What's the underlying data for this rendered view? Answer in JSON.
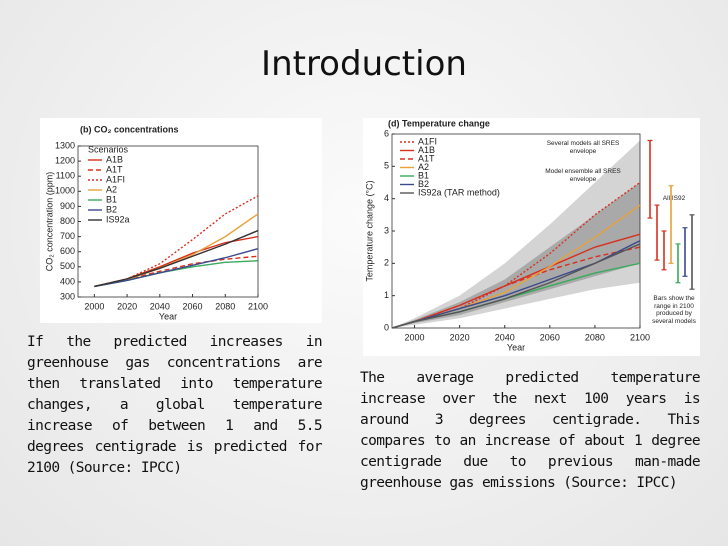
{
  "title": "Introduction",
  "chart_data": [
    {
      "type": "line",
      "title": "(b) CO₂ concentrations",
      "xlabel": "Year",
      "ylabel": "CO₂ concentration (ppm)",
      "legend_title": "Scenarios",
      "x": [
        2000,
        2020,
        2040,
        2060,
        2080,
        2100
      ],
      "xlim": [
        1990,
        2100
      ],
      "xticks": [
        2000,
        2020,
        2040,
        2060,
        2080,
        2100
      ],
      "ylim": [
        300,
        1300
      ],
      "yticks": [
        300,
        400,
        500,
        600,
        700,
        800,
        900,
        1000,
        1100,
        1200,
        1300
      ],
      "series": [
        {
          "name": "A1B",
          "color": "#d7301f",
          "style": "solid",
          "values": [
            370,
            420,
            500,
            590,
            660,
            700
          ]
        },
        {
          "name": "A1T",
          "color": "#d7301f",
          "style": "dashed",
          "values": [
            370,
            415,
            470,
            520,
            550,
            570
          ]
        },
        {
          "name": "A1FI",
          "color": "#d7301f",
          "style": "dotted",
          "values": [
            370,
            420,
            520,
            680,
            850,
            970
          ]
        },
        {
          "name": "A2",
          "color": "#e8a23a",
          "style": "solid",
          "values": [
            370,
            415,
            490,
            580,
            700,
            850
          ]
        },
        {
          "name": "B1",
          "color": "#3aaa5c",
          "style": "solid",
          "values": [
            370,
            410,
            460,
            500,
            530,
            540
          ]
        },
        {
          "name": "B2",
          "color": "#3b4a8c",
          "style": "solid",
          "values": [
            370,
            410,
            460,
            510,
            560,
            620
          ]
        },
        {
          "name": "IS92a",
          "color": "#333333",
          "style": "solid",
          "values": [
            370,
            420,
            490,
            570,
            650,
            740
          ]
        }
      ]
    },
    {
      "type": "line",
      "title": "(d) Temperature change",
      "xlabel": "Year",
      "ylabel": "Temperature change (°C)",
      "x": [
        1990,
        2000,
        2020,
        2040,
        2060,
        2080,
        2100
      ],
      "xlim": [
        1990,
        2100
      ],
      "xticks": [
        2000,
        2020,
        2040,
        2060,
        2080,
        2100
      ],
      "ylim": [
        0,
        6
      ],
      "yticks": [
        0,
        1,
        2,
        3,
        4,
        5,
        6
      ],
      "bands": [
        {
          "color": "#d4d4d4",
          "upper": [
            0,
            0.3,
            1.0,
            2.0,
            3.2,
            4.5,
            5.8
          ],
          "lower": [
            0,
            0.1,
            0.3,
            0.6,
            0.9,
            1.2,
            1.4
          ]
        },
        {
          "color": "#a9a9a9",
          "upper": [
            0,
            0.25,
            0.8,
            1.5,
            2.5,
            3.5,
            4.5
          ],
          "lower": [
            0,
            0.15,
            0.4,
            0.8,
            1.2,
            1.6,
            2.0
          ]
        }
      ],
      "series": [
        {
          "name": "A1FI",
          "color": "#d7301f",
          "style": "dotted",
          "values": [
            0,
            0.2,
            0.6,
            1.3,
            2.3,
            3.5,
            4.5
          ]
        },
        {
          "name": "A1B",
          "color": "#d7301f",
          "style": "solid",
          "values": [
            0,
            0.2,
            0.7,
            1.3,
            1.9,
            2.5,
            2.9
          ]
        },
        {
          "name": "A1T",
          "color": "#d7301f",
          "style": "dashed",
          "values": [
            0,
            0.2,
            0.7,
            1.3,
            1.8,
            2.2,
            2.5
          ]
        },
        {
          "name": "A2",
          "color": "#e8a23a",
          "style": "solid",
          "values": [
            0,
            0.2,
            0.6,
            1.1,
            1.9,
            2.8,
            3.8
          ]
        },
        {
          "name": "B1",
          "color": "#3aaa5c",
          "style": "solid",
          "values": [
            0,
            0.2,
            0.5,
            0.9,
            1.3,
            1.7,
            2.0
          ]
        },
        {
          "name": "B2",
          "color": "#3b4a8c",
          "style": "solid",
          "values": [
            0,
            0.2,
            0.6,
            1.0,
            1.5,
            2.0,
            2.7
          ]
        },
        {
          "name": "IS92a (TAR method)",
          "color": "#555555",
          "style": "solid",
          "values": [
            0,
            0.2,
            0.5,
            0.9,
            1.4,
            2.0,
            2.6
          ]
        }
      ],
      "range_bars": {
        "colors": [
          "#d7301f",
          "#d7301f",
          "#d7301f",
          "#e8a23a",
          "#3aaa5c",
          "#3b4a8c",
          "#555555"
        ],
        "low": [
          3.4,
          2.1,
          1.8,
          2.0,
          1.4,
          1.6,
          1.2
        ],
        "high": [
          5.8,
          3.8,
          3.0,
          4.4,
          2.6,
          3.1,
          3.5
        ]
      },
      "annotations": [
        "Several models all SRES envelope",
        "Model ensemble all SRES envelope",
        "All IS92",
        "Bars show the range in 2100 produced by several models"
      ]
    }
  ],
  "paragraphs": [
    "If the predicted increases in greenhouse gas concentrations are then translated into temperature changes, a global temperature increase of between 1 and 5.5 degrees centigrade is predicted for 2100 (Source: IPCC)",
    "The average predicted temperature increase over the next 100 years is around 3 degrees centigrade. This compares to an increase of about 1 degree centigrade due to previous man-made greenhouse gas emissions (Source: IPCC)"
  ]
}
